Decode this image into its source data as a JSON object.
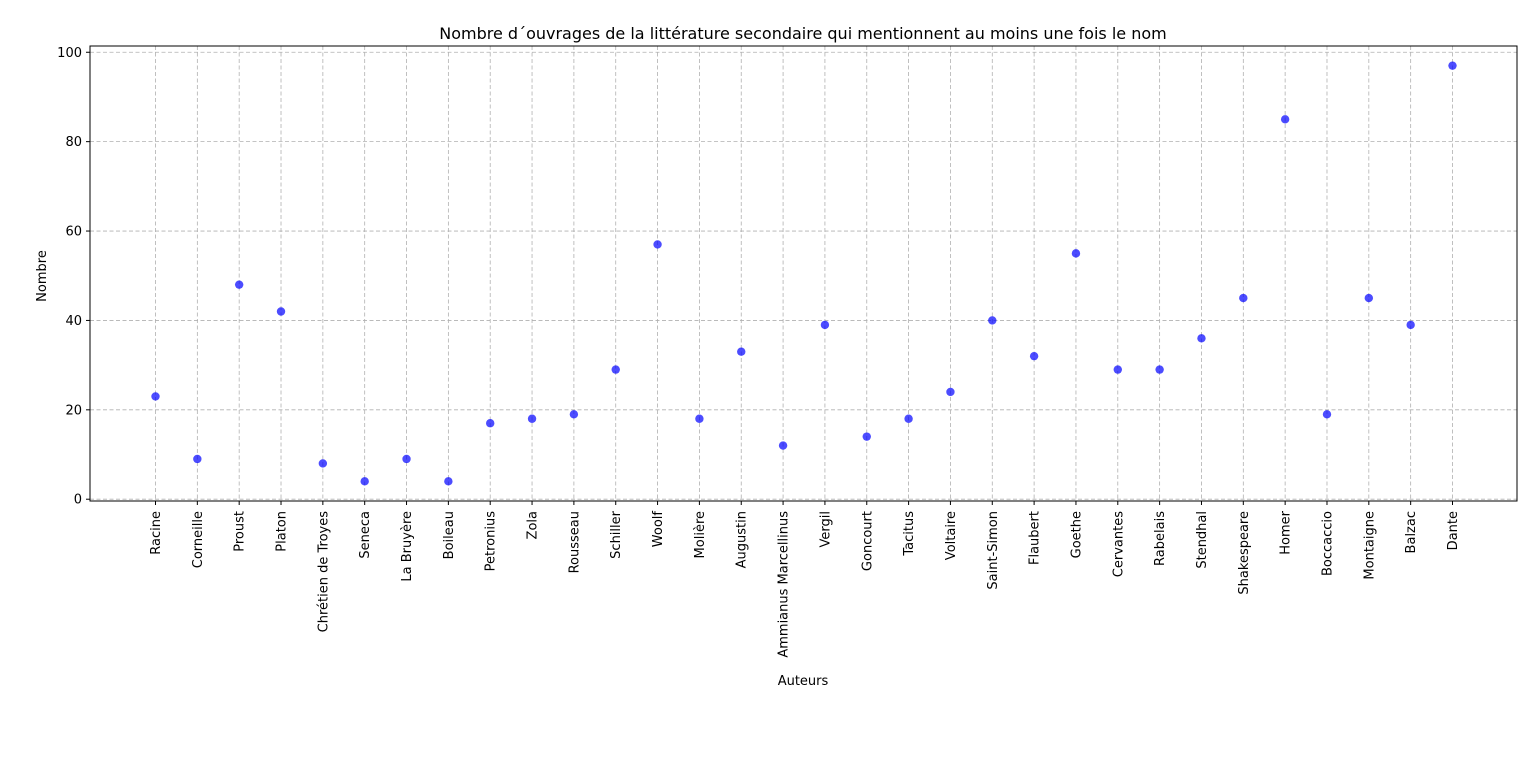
{
  "chart_data": {
    "type": "scatter",
    "title": "Nombre d´ouvrages de la littérature secondaire qui mentionnent au moins une fois le nom",
    "xlabel": "Auteurs",
    "ylabel": "Nombre",
    "categories": [
      "Racine",
      "Corneille",
      "Proust",
      "Platon",
      "Chrétien de Troyes",
      "Seneca",
      "La Bruyère",
      "Boileau",
      "Petronius",
      "Zola",
      "Rousseau",
      "Schiller",
      "Woolf",
      "Molière",
      "Augustin",
      "Ammianus Marcellinus",
      "Vergil",
      "Goncourt",
      "Tacitus",
      "Voltaire",
      "Saint-Simon",
      "Flaubert",
      "Goethe",
      "Cervantes",
      "Rabelais",
      "Stendhal",
      "Shakespeare",
      "Homer",
      "Boccaccio",
      "Montaigne",
      "Balzac",
      "Dante"
    ],
    "values": [
      23,
      9,
      48,
      42,
      8,
      4,
      9,
      4,
      17,
      18,
      19,
      29,
      57,
      18,
      33,
      12,
      39,
      14,
      18,
      24,
      40,
      32,
      55,
      29,
      29,
      36,
      45,
      85,
      19,
      45,
      39,
      97
    ],
    "ylim": [
      -0.4,
      101.4
    ],
    "yticks": [
      0,
      20,
      40,
      60,
      80,
      100
    ],
    "grid": true,
    "grid_style": "dashed",
    "marker_color": "#0000ff",
    "marker_alpha": 0.7,
    "grid_color": "#b0b0b0",
    "axis_color": "#000000"
  }
}
